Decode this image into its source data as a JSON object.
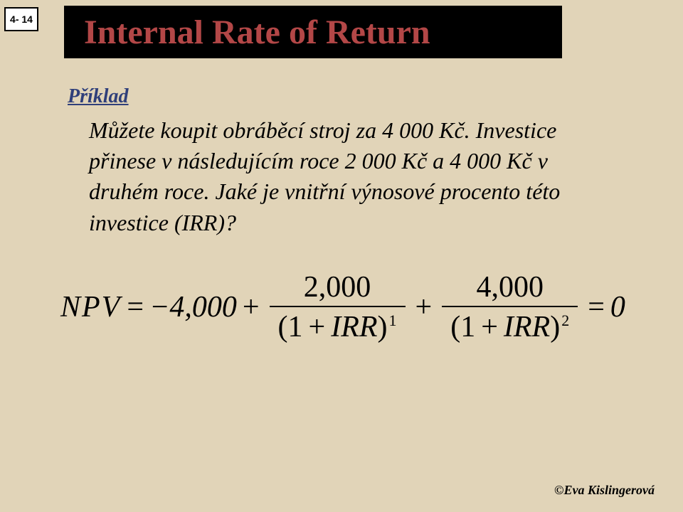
{
  "slide": {
    "page_number": "4- 14",
    "title": "Internal Rate of Return",
    "example_label": "Příklad",
    "prose": "Můžete koupit obráběcí stroj za  4 000 Kč. Investice přinese v následujícím roce 2 000 Kč a  4 000  Kč v druhém roce. Jaké je vnitřní výnosové procento této investice (IRR)?",
    "formula": {
      "lhs": "NPV",
      "eq": "=",
      "initial": "−4,000",
      "plus": "+",
      "frac1_num": "2,000",
      "frac1_den_open": "(1",
      "frac1_den_plus": "+",
      "frac1_den_irr": "IRR",
      "frac1_den_close": ")",
      "frac1_exp": "1",
      "frac2_num": "4,000",
      "frac2_den_open": "(1",
      "frac2_den_plus": "+",
      "frac2_den_irr": "IRR",
      "frac2_den_close": ")",
      "frac2_exp": "2",
      "rhs_eq": "=",
      "rhs_val": "0"
    },
    "footer": "©Eva Kislingerová"
  },
  "style": {
    "background_color": "#e1d4b8",
    "title_bg": "#000000",
    "title_color": "#b34747",
    "accent_color": "#2f3f7a",
    "text_color": "#000000",
    "pagebox_bg": "#ffffff",
    "pagebox_border": "#000000",
    "title_fontsize": 48,
    "body_fontsize": 32,
    "formula_fontsize": 42,
    "footer_fontsize": 18
  }
}
